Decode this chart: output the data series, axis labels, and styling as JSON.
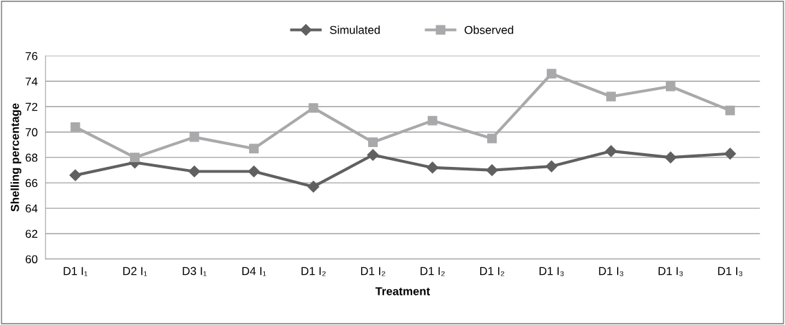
{
  "chart_data": {
    "type": "line",
    "xlabel": "Treatment",
    "ylabel": "Shelling percentage",
    "categories": [
      "D1 I₁",
      "D2 I₁",
      "D3 I₁",
      "D4 I₁",
      "D1 I₂",
      "D1 I₂",
      "D1 I₂",
      "D1 I₂",
      "D1 I₃",
      "D1 I₃",
      "D1 I₃",
      "D1 I₃"
    ],
    "series": [
      {
        "name": "Simulated",
        "color": "#606060",
        "marker": "diamond",
        "values": [
          66.6,
          67.6,
          66.9,
          66.9,
          65.7,
          68.2,
          67.2,
          67.0,
          67.3,
          68.5,
          68.0,
          68.3
        ]
      },
      {
        "name": "Observed",
        "color": "#a9a9ab",
        "marker": "square",
        "values": [
          70.4,
          68.0,
          69.6,
          68.7,
          71.9,
          69.2,
          70.9,
          69.5,
          74.6,
          72.8,
          73.6,
          71.7
        ]
      }
    ],
    "ylim": [
      60,
      76
    ],
    "yticks": [
      60,
      62,
      64,
      66,
      68,
      70,
      72,
      74,
      76
    ],
    "grid": "y",
    "legend": "top",
    "line_style": "solid"
  }
}
